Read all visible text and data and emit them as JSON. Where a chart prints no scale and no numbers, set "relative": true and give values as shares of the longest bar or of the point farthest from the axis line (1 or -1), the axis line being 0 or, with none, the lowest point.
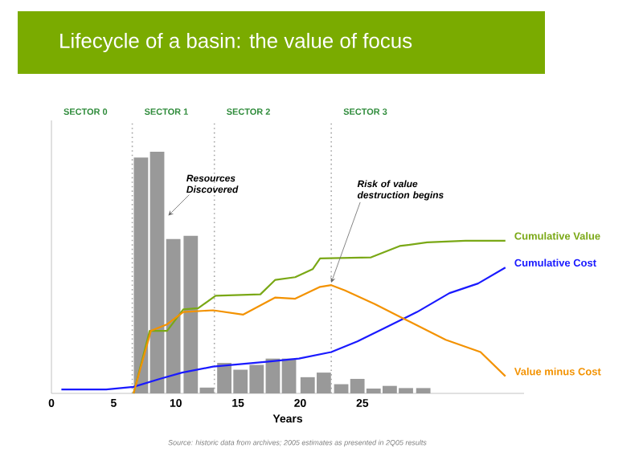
{
  "chart_data": {
    "type": "bar",
    "title": "Lifecycle of a basin: the value of focus",
    "xlabel": "Years",
    "relative": true,
    "xlim": [
      0,
      38
    ],
    "xticks": [
      0,
      5,
      10,
      15,
      20,
      25
    ],
    "tick_labels": "x",
    "grid": false,
    "series": [
      {
        "color": "#999999",
        "x": [
          7.2,
          8.5,
          9.8,
          11.2,
          12.5,
          13.9,
          15.2,
          16.5,
          17.8,
          19.1,
          20.6,
          21.9,
          23.3,
          24.6,
          25.9,
          27.2,
          28.5,
          29.9
        ],
        "values": [
          0.976,
          1,
          0.639,
          0.652,
          0.024,
          0.126,
          0.098,
          0.118,
          0.144,
          0.144,
          0.067,
          0.086,
          0.038,
          0.06,
          0.02,
          0.031,
          0.022,
          0.022
        ]
      },
      {
        "type": "line",
        "name": "Cumulative Value",
        "color": "#7aa816",
        "x": [
          6.6,
          7.9,
          9.3,
          10.6,
          11.8,
          13.2,
          16.8,
          18.0,
          19.6,
          21.0,
          21.6,
          25.7,
          28.0,
          30.2,
          33.3,
          36.5
        ],
        "values": [
          0,
          0.259,
          0.259,
          0.348,
          0.353,
          0.404,
          0.41,
          0.47,
          0.481,
          0.514,
          0.559,
          0.563,
          0.61,
          0.625,
          0.632,
          0.632
        ]
      },
      {
        "type": "line",
        "name": "Cumulative Cost",
        "color": "#1a1aff",
        "x": [
          0.8,
          4.4,
          6.6,
          8.7,
          10.5,
          13.0,
          17.3,
          19.9,
          22.5,
          24.6,
          26.8,
          29.4,
          32.0,
          34.3,
          36.5
        ],
        "values": [
          0.016,
          0.016,
          0.027,
          0.06,
          0.086,
          0.111,
          0.131,
          0.144,
          0.171,
          0.215,
          0.271,
          0.337,
          0.415,
          0.455,
          0.521
        ]
      },
      {
        "type": "line",
        "name": "Value minus Cost",
        "color": "#f39200",
        "x": [
          6.6,
          8.0,
          9.3,
          10.6,
          13.0,
          15.4,
          18.0,
          19.6,
          21.6,
          22.5,
          23.6,
          26.0,
          28.1,
          31.7,
          34.5,
          36.5
        ],
        "values": [
          0,
          0.259,
          0.286,
          0.337,
          0.344,
          0.326,
          0.397,
          0.392,
          0.441,
          0.448,
          0.426,
          0.37,
          0.315,
          0.222,
          0.171,
          0.071
        ]
      }
    ],
    "ref_lines": [
      {
        "axis": "x",
        "value": 0,
        "label": "SECTOR 0",
        "line_style": "solid"
      },
      {
        "axis": "x",
        "value": 6.5,
        "label": "SECTOR 1",
        "line_style": "dotted"
      },
      {
        "axis": "x",
        "value": 13.1,
        "label": "SECTOR 2",
        "line_style": "dotted"
      },
      {
        "axis": "x",
        "value": 22.5,
        "label": "SECTOR 3",
        "line_style": "dotted"
      }
    ],
    "annotations": [
      {
        "text": "Resources Discovered",
        "x": 9.4,
        "y": 0.736
      },
      {
        "text": "Risk of value destruction begins",
        "x": 22.5,
        "y": 0.459
      },
      "Source: historic data from archives; 2005 estimates as presented in 2Q05 results"
    ]
  }
}
